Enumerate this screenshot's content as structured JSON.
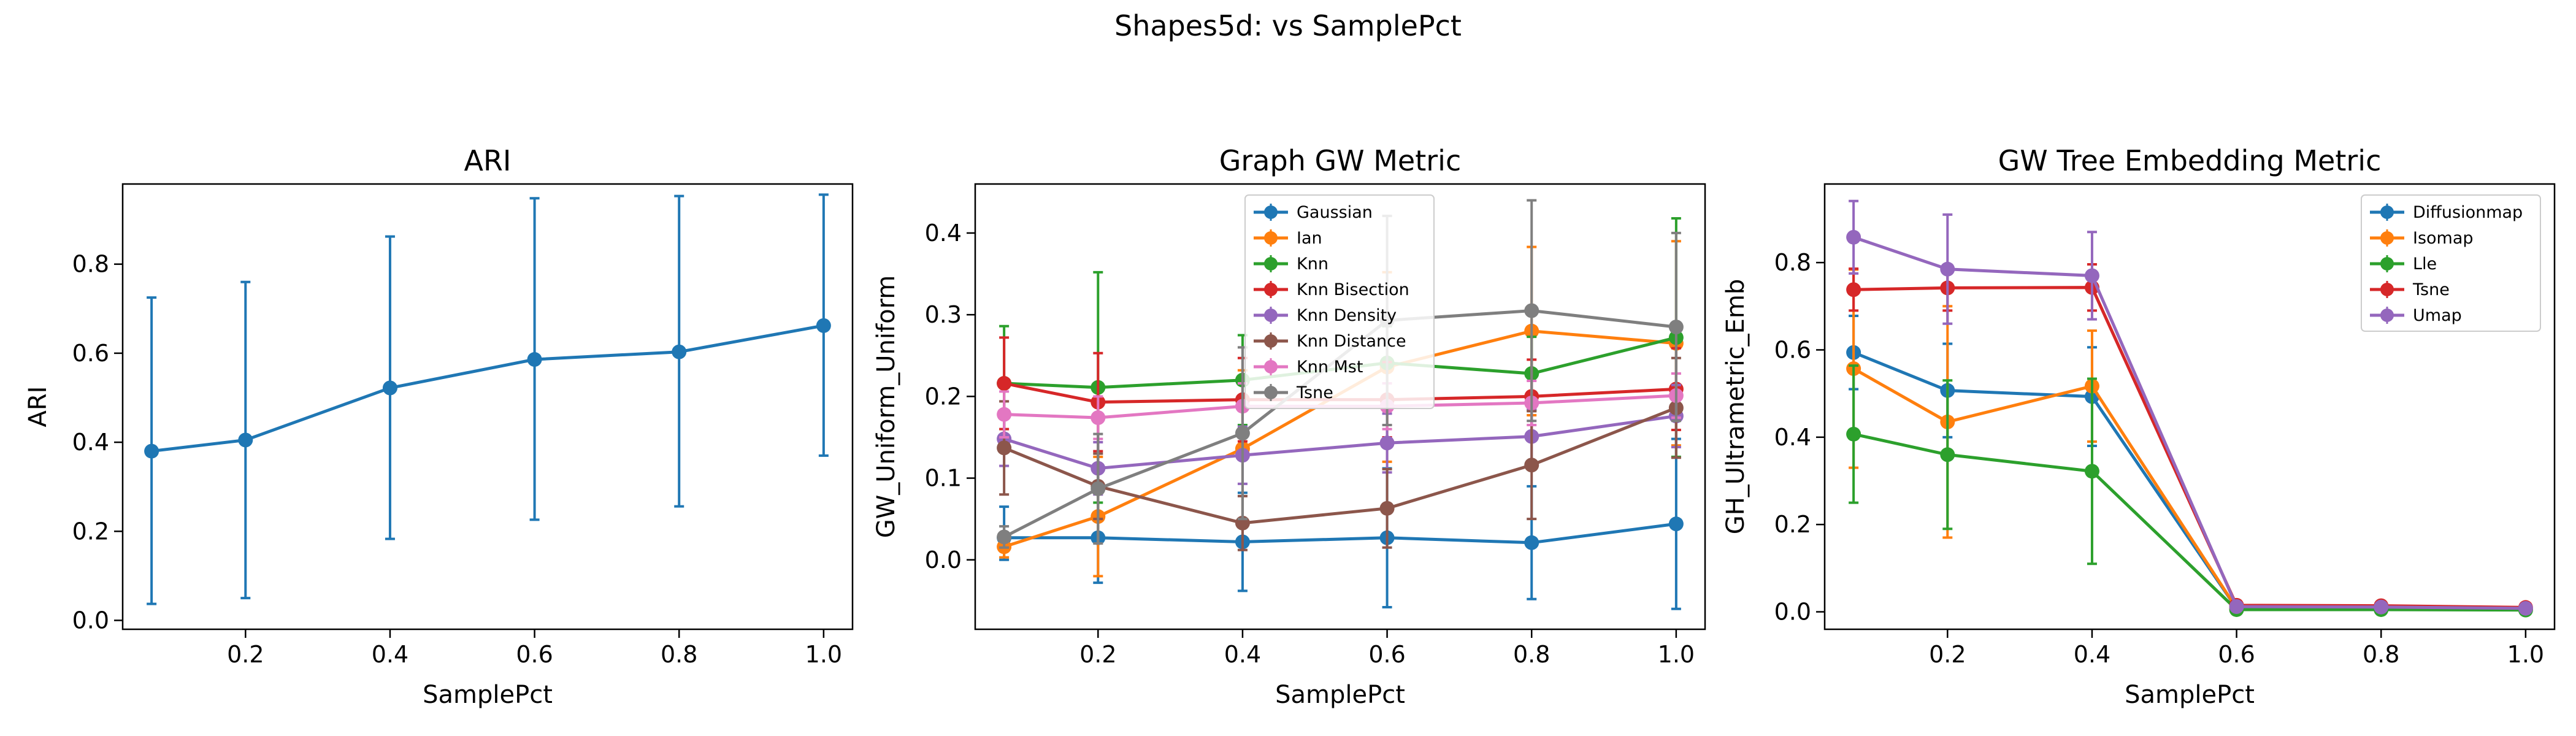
{
  "figure": {
    "title": "Shapes5d: vs SamplePct"
  },
  "colors": {
    "blue": "#1f77b4",
    "orange": "#ff7f0e",
    "green": "#2ca02c",
    "red": "#d62728",
    "purple": "#9467bd",
    "brown": "#8c564b",
    "pink": "#e377c2",
    "gray": "#7f7f7f"
  },
  "chart_data": [
    {
      "type": "line",
      "title": "ARI",
      "xlabel": "SamplePct",
      "ylabel": "ARI",
      "xlim": [
        0.03,
        1.04
      ],
      "ylim": [
        -0.02,
        0.98
      ],
      "xticks": [
        0.2,
        0.4,
        0.6,
        0.8,
        1.0
      ],
      "xticklabels": [
        "0.2",
        "0.4",
        "0.6",
        "0.8",
        "1.0"
      ],
      "yticks": [
        0.0,
        0.2,
        0.4,
        0.6,
        0.8
      ],
      "yticklabels": [
        "0.0",
        "0.2",
        "0.4",
        "0.6",
        "0.8"
      ],
      "legend": null,
      "series": [
        {
          "name": "",
          "color": "#1f77b4",
          "x": [
            0.07,
            0.2,
            0.4,
            0.6,
            0.8,
            1.0
          ],
          "y": [
            0.38,
            0.405,
            0.522,
            0.586,
            0.603,
            0.662
          ],
          "err_low": [
            0.037,
            0.05,
            0.183,
            0.226,
            0.256,
            0.37
          ],
          "err_high": [
            0.725,
            0.76,
            0.862,
            0.948,
            0.953,
            0.956
          ]
        }
      ]
    },
    {
      "type": "line",
      "title": "Graph GW Metric",
      "xlabel": "SamplePct",
      "ylabel": "GW_Uniform_Uniform",
      "xlim": [
        0.03,
        1.04
      ],
      "ylim": [
        -0.085,
        0.46
      ],
      "xticks": [
        0.2,
        0.4,
        0.6,
        0.8,
        1.0
      ],
      "xticklabels": [
        "0.2",
        "0.4",
        "0.6",
        "0.8",
        "1.0"
      ],
      "yticks": [
        0.0,
        0.1,
        0.2,
        0.3,
        0.4
      ],
      "yticklabels": [
        "0.0",
        "0.1",
        "0.2",
        "0.3",
        "0.4"
      ],
      "legend": "upper-center",
      "series": [
        {
          "name": "Gaussian",
          "color": "#1f77b4",
          "x": [
            0.07,
            0.2,
            0.4,
            0.6,
            0.8,
            1.0
          ],
          "y": [
            0.027,
            0.027,
            0.022,
            0.027,
            0.021,
            0.044
          ],
          "err_low": [
            0.0,
            -0.028,
            -0.038,
            -0.058,
            -0.048,
            -0.06
          ],
          "err_high": [
            0.065,
            0.082,
            0.082,
            0.112,
            0.09,
            0.148
          ]
        },
        {
          "name": "Ian",
          "color": "#ff7f0e",
          "x": [
            0.07,
            0.2,
            0.4,
            0.6,
            0.8,
            1.0
          ],
          "y": [
            0.016,
            0.053,
            0.136,
            0.236,
            0.28,
            0.265
          ],
          "err_low": [
            0.003,
            -0.02,
            0.04,
            0.12,
            0.177,
            0.14
          ],
          "err_high": [
            0.03,
            0.126,
            0.232,
            0.352,
            0.383,
            0.39
          ]
        },
        {
          "name": "Knn",
          "color": "#2ca02c",
          "x": [
            0.07,
            0.2,
            0.4,
            0.6,
            0.8,
            1.0
          ],
          "y": [
            0.216,
            0.211,
            0.22,
            0.241,
            0.228,
            0.272
          ],
          "err_low": [
            0.146,
            0.07,
            0.165,
            0.196,
            0.183,
            0.126
          ],
          "err_high": [
            0.286,
            0.352,
            0.275,
            0.286,
            0.273,
            0.418
          ]
        },
        {
          "name": "Knn Bisection",
          "color": "#d62728",
          "x": [
            0.07,
            0.2,
            0.4,
            0.6,
            0.8,
            1.0
          ],
          "y": [
            0.216,
            0.193,
            0.196,
            0.196,
            0.2,
            0.209
          ],
          "err_low": [
            0.16,
            0.133,
            0.145,
            0.15,
            0.155,
            0.159
          ],
          "err_high": [
            0.272,
            0.253,
            0.247,
            0.242,
            0.245,
            0.259
          ]
        },
        {
          "name": "Knn Density",
          "color": "#9467bd",
          "x": [
            0.07,
            0.2,
            0.4,
            0.6,
            0.8,
            1.0
          ],
          "y": [
            0.148,
            0.112,
            0.128,
            0.143,
            0.151,
            0.176
          ],
          "err_low": [
            0.115,
            0.08,
            0.093,
            0.107,
            0.118,
            0.138
          ],
          "err_high": [
            0.181,
            0.144,
            0.163,
            0.179,
            0.184,
            0.214
          ]
        },
        {
          "name": "Knn Distance",
          "color": "#8c564b",
          "x": [
            0.07,
            0.2,
            0.4,
            0.6,
            0.8,
            1.0
          ],
          "y": [
            0.137,
            0.09,
            0.045,
            0.063,
            0.116,
            0.186
          ],
          "err_low": [
            0.08,
            0.05,
            0.012,
            0.015,
            0.05,
            0.125
          ],
          "err_high": [
            0.194,
            0.13,
            0.078,
            0.111,
            0.182,
            0.247
          ]
        },
        {
          "name": "Knn Mst",
          "color": "#e377c2",
          "x": [
            0.07,
            0.2,
            0.4,
            0.6,
            0.8,
            1.0
          ],
          "y": [
            0.178,
            0.174,
            0.188,
            0.188,
            0.192,
            0.201
          ],
          "err_low": [
            0.15,
            0.148,
            0.16,
            0.16,
            0.165,
            0.174
          ],
          "err_high": [
            0.206,
            0.2,
            0.216,
            0.216,
            0.219,
            0.228
          ]
        },
        {
          "name": "Tsne",
          "color": "#7f7f7f",
          "x": [
            0.07,
            0.2,
            0.4,
            0.6,
            0.8,
            1.0
          ],
          "y": [
            0.028,
            0.087,
            0.155,
            0.293,
            0.305,
            0.285
          ],
          "err_low": [
            0.015,
            0.02,
            0.05,
            0.165,
            0.17,
            0.17
          ],
          "err_high": [
            0.041,
            0.154,
            0.26,
            0.421,
            0.44,
            0.4
          ]
        }
      ]
    },
    {
      "type": "line",
      "title": "GW Tree Embedding Metric",
      "xlabel": "SamplePct",
      "ylabel": "GH_Ultrametric_Emb",
      "xlim": [
        0.03,
        1.04
      ],
      "ylim": [
        -0.04,
        0.98
      ],
      "xticks": [
        0.2,
        0.4,
        0.6,
        0.8,
        1.0
      ],
      "xticklabels": [
        "0.2",
        "0.4",
        "0.6",
        "0.8",
        "1.0"
      ],
      "yticks": [
        0.0,
        0.2,
        0.4,
        0.6,
        0.8
      ],
      "yticklabels": [
        "0.0",
        "0.2",
        "0.4",
        "0.6",
        "0.8"
      ],
      "legend": "upper-right",
      "series": [
        {
          "name": "Diffusionmap",
          "color": "#1f77b4",
          "x": [
            0.07,
            0.2,
            0.4,
            0.6,
            0.8,
            1.0
          ],
          "y": [
            0.594,
            0.507,
            0.493,
            0.008,
            0.007,
            0.005
          ],
          "err_low": [
            0.51,
            0.4,
            0.38,
            0.0,
            0.0,
            0.0
          ],
          "err_high": [
            0.678,
            0.614,
            0.606,
            0.016,
            0.014,
            0.01
          ]
        },
        {
          "name": "Isomap",
          "color": "#ff7f0e",
          "x": [
            0.07,
            0.2,
            0.4,
            0.6,
            0.8,
            1.0
          ],
          "y": [
            0.557,
            0.435,
            0.517,
            0.008,
            0.006,
            0.005
          ],
          "err_low": [
            0.33,
            0.17,
            0.39,
            0.0,
            0.0,
            0.0
          ],
          "err_high": [
            0.784,
            0.7,
            0.644,
            0.016,
            0.012,
            0.01
          ]
        },
        {
          "name": "Lle",
          "color": "#2ca02c",
          "x": [
            0.07,
            0.2,
            0.4,
            0.6,
            0.8,
            1.0
          ],
          "y": [
            0.407,
            0.36,
            0.322,
            0.005,
            0.005,
            0.004
          ],
          "err_low": [
            0.25,
            0.19,
            0.11,
            0.0,
            0.0,
            0.0
          ],
          "err_high": [
            0.564,
            0.53,
            0.534,
            0.01,
            0.01,
            0.008
          ]
        },
        {
          "name": "Tsne",
          "color": "#d62728",
          "x": [
            0.07,
            0.2,
            0.4,
            0.6,
            0.8,
            1.0
          ],
          "y": [
            0.738,
            0.742,
            0.743,
            0.015,
            0.014,
            0.01
          ],
          "err_low": [
            0.69,
            0.69,
            0.69,
            0.005,
            0.005,
            0.003
          ],
          "err_high": [
            0.786,
            0.794,
            0.796,
            0.025,
            0.023,
            0.017
          ]
        },
        {
          "name": "Umap",
          "color": "#9467bd",
          "x": [
            0.07,
            0.2,
            0.4,
            0.6,
            0.8,
            1.0
          ],
          "y": [
            0.858,
            0.785,
            0.77,
            0.012,
            0.011,
            0.008
          ],
          "err_low": [
            0.775,
            0.66,
            0.67,
            0.004,
            0.004,
            0.002
          ],
          "err_high": [
            0.941,
            0.91,
            0.87,
            0.02,
            0.018,
            0.014
          ]
        }
      ]
    }
  ]
}
